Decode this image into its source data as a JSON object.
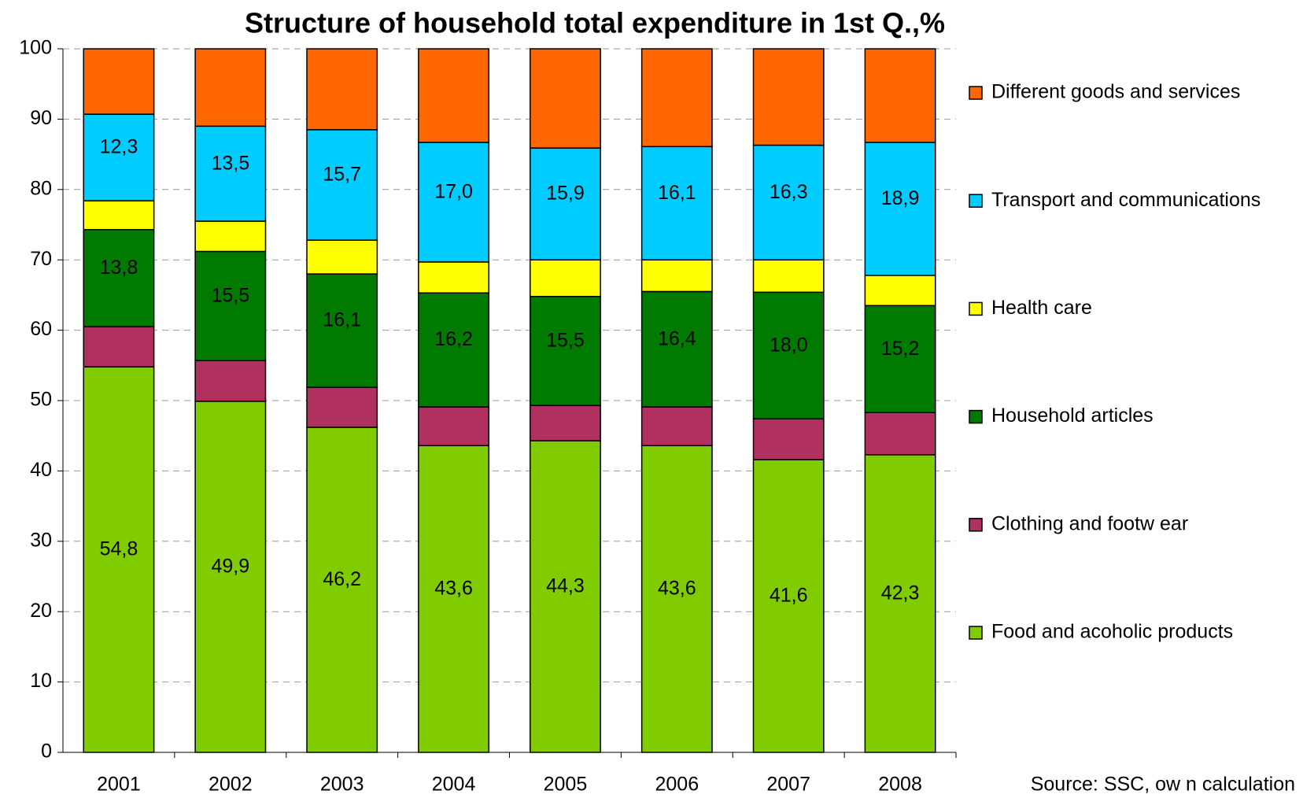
{
  "chart_data": {
    "type": "stacked-bar",
    "title": "Structure of household total expenditure in 1st Q.,%",
    "source": "Source: SSC, ow n calculation",
    "categories": [
      "2001",
      "2002",
      "2003",
      "2004",
      "2005",
      "2006",
      "2007",
      "2008"
    ],
    "series": [
      {
        "name": "Food and acoholic products",
        "color": "#80cc00",
        "values": [
          54.8,
          49.9,
          46.2,
          43.6,
          44.3,
          43.6,
          41.6,
          42.3
        ],
        "value_labels": [
          "54,8",
          "49,9",
          "46,2",
          "43,6",
          "44,3",
          "43,6",
          "41,6",
          "42,3"
        ]
      },
      {
        "name": "Clothing and footw ear",
        "color": "#b03060",
        "values": [
          5.7,
          5.8,
          5.7,
          5.5,
          5.0,
          5.5,
          5.8,
          6.0
        ]
      },
      {
        "name": "Household articles",
        "color": "#007a00",
        "values": [
          13.8,
          15.5,
          16.1,
          16.2,
          15.5,
          16.4,
          18.0,
          15.2
        ],
        "value_labels": [
          "13,8",
          "15,5",
          "16,1",
          "16,2",
          "15,5",
          "16,4",
          "18,0",
          "15,2"
        ]
      },
      {
        "name": "Health care",
        "color": "#ffff00",
        "values": [
          4.1,
          4.3,
          4.8,
          4.4,
          5.2,
          4.5,
          4.6,
          4.3
        ]
      },
      {
        "name": "Transport and communications",
        "color": "#00ccff",
        "values": [
          12.3,
          13.5,
          15.7,
          17.0,
          15.9,
          16.1,
          16.3,
          18.9
        ],
        "value_labels": [
          "12,3",
          "13,5",
          "15,7",
          "17,0",
          "15,9",
          "16,1",
          "16,3",
          "18,9"
        ]
      },
      {
        "name": "Different goods and services",
        "color": "#ff6600",
        "values": [
          9.3,
          11.0,
          11.5,
          13.3,
          14.1,
          13.9,
          13.7,
          13.3
        ]
      }
    ],
    "ylim": [
      0,
      100
    ],
    "yticks": [
      0,
      10,
      20,
      30,
      40,
      50,
      60,
      70,
      80,
      90,
      100
    ],
    "grid": true,
    "legend": "right"
  }
}
